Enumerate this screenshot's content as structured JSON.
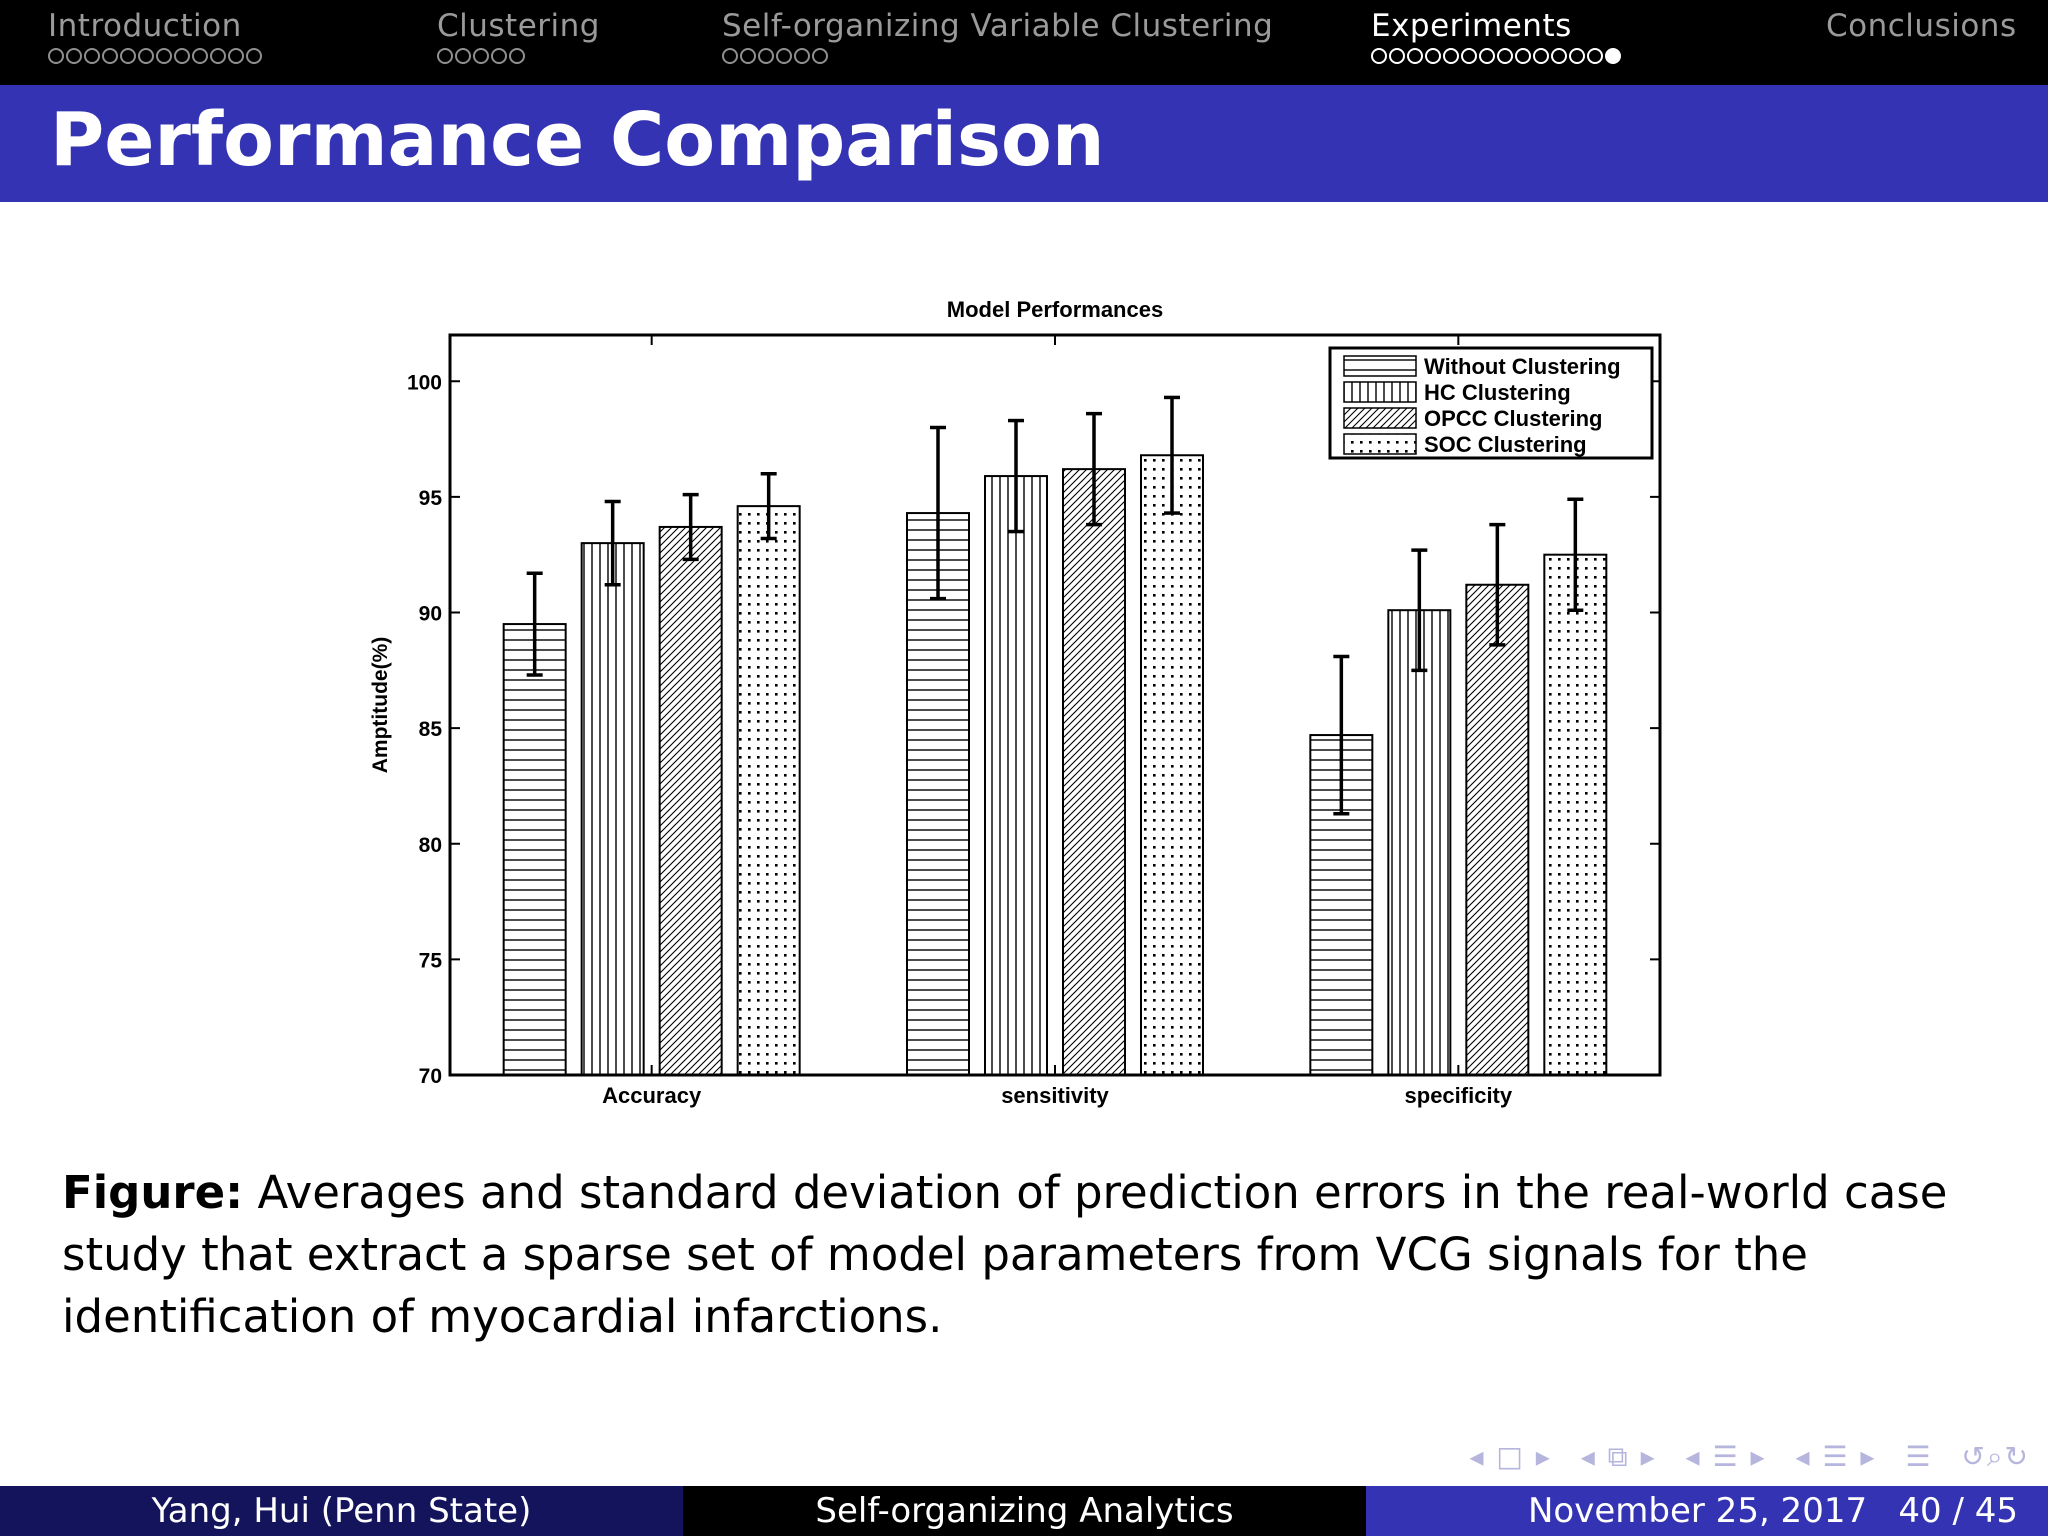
{
  "nav": {
    "sections": [
      {
        "title": "Introduction",
        "dots": 12,
        "filled": -1,
        "active": false
      },
      {
        "title": "Clustering",
        "dots": 5,
        "filled": -1,
        "active": false
      },
      {
        "title": "Self-organizing Variable Clustering",
        "dots": 6,
        "filled": -1,
        "active": false
      },
      {
        "title": "Experiments",
        "dots": 14,
        "filled": 13,
        "active": true
      },
      {
        "title": "Conclusions",
        "dots": 0,
        "filled": -1,
        "active": false
      }
    ]
  },
  "slide": {
    "title": "Performance Comparison"
  },
  "caption": {
    "label": "Figure:",
    "text": "Averages and standard deviation of prediction errors in the real-world case study that extract a sparse set of model parameters from VCG signals for the identification of myocardial infarctions."
  },
  "footer": {
    "author": "Yang, Hui  (Penn State)",
    "short_title": "Self-organizing Analytics",
    "date": "November 25, 2017",
    "page": "40 / 45"
  },
  "colors": {
    "header_bg": "#000000",
    "title_bg": "#3333b3",
    "footer_left_bg": "#14145c",
    "footer_right_bg": "#3333b3"
  },
  "chart_data": {
    "type": "bar",
    "title": "Model Performances",
    "xlabel": "",
    "ylabel": "Amptitude(%)",
    "ylim": [
      70,
      102
    ],
    "yticks": [
      70,
      75,
      80,
      85,
      90,
      95,
      100
    ],
    "categories": [
      "Accuracy",
      "sensitivity",
      "specificity"
    ],
    "legend_position": "top-right",
    "series": [
      {
        "name": "Without Clustering",
        "pattern": "horizontal",
        "values": [
          89.5,
          94.3,
          84.7
        ],
        "errors": [
          2.2,
          3.7,
          3.4
        ]
      },
      {
        "name": "HC Clustering",
        "pattern": "vertical",
        "values": [
          93.0,
          95.9,
          90.1
        ],
        "errors": [
          1.8,
          2.4,
          2.6
        ]
      },
      {
        "name": "OPCC Clustering",
        "pattern": "diagonal",
        "values": [
          93.7,
          96.2,
          91.2
        ],
        "errors": [
          1.4,
          2.4,
          2.6
        ]
      },
      {
        "name": "SOC Clustering",
        "pattern": "dots",
        "values": [
          94.6,
          96.8,
          92.5
        ],
        "errors": [
          1.4,
          2.5,
          2.4
        ]
      }
    ]
  }
}
